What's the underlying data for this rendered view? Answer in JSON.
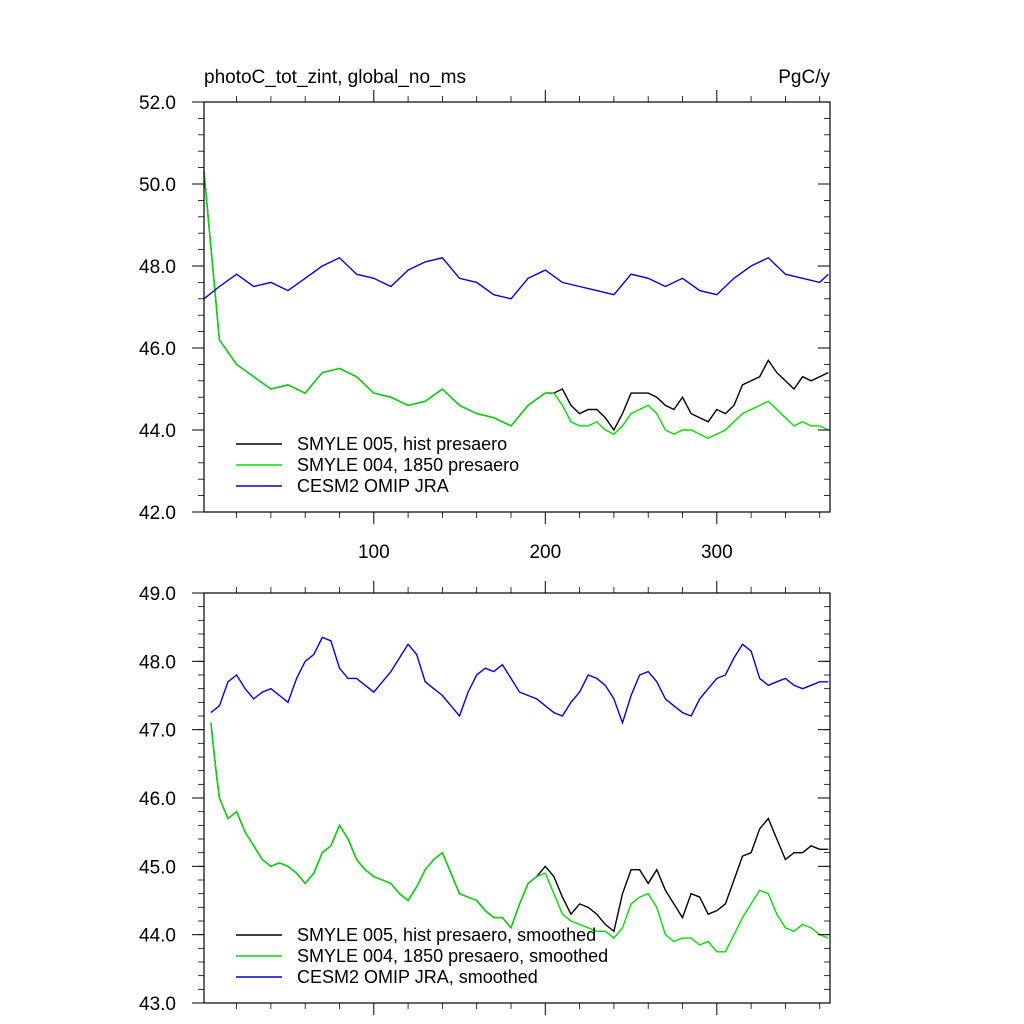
{
  "chart_data": [
    {
      "type": "line",
      "title": "photoC_tot_zint, global_no_ms",
      "units": "PgC/y",
      "xlabel": "",
      "ylabel": "",
      "xlim": [
        1,
        366
      ],
      "ylim": [
        42.0,
        52.0
      ],
      "x_ticks": [
        100,
        200,
        300
      ],
      "y_ticks": [
        "42.0",
        "44.0",
        "46.0",
        "48.0",
        "50.0",
        "52.0"
      ],
      "y_tick_values": [
        42.0,
        44.0,
        46.0,
        48.0,
        50.0,
        52.0
      ],
      "grid": false,
      "legend_position": "bottom-left",
      "series": [
        {
          "name": "SMYLE 005, hist presaero",
          "color": "#000000",
          "x": [
            1,
            10,
            20,
            30,
            40,
            50,
            60,
            70,
            80,
            90,
            100,
            110,
            120,
            130,
            140,
            150,
            160,
            170,
            180,
            190,
            200,
            205,
            210,
            215,
            220,
            225,
            230,
            235,
            240,
            245,
            250,
            255,
            260,
            265,
            270,
            275,
            280,
            285,
            290,
            295,
            300,
            305,
            310,
            315,
            320,
            325,
            330,
            335,
            340,
            345,
            350,
            355,
            360,
            365
          ],
          "y": [
            50.3,
            46.2,
            45.6,
            45.3,
            45.0,
            45.1,
            44.9,
            45.4,
            45.5,
            45.3,
            44.9,
            44.8,
            44.6,
            44.7,
            45.0,
            44.6,
            44.4,
            44.3,
            44.1,
            44.6,
            44.9,
            44.9,
            45.0,
            44.6,
            44.4,
            44.5,
            44.5,
            44.3,
            44.0,
            44.4,
            44.9,
            44.9,
            44.9,
            44.8,
            44.6,
            44.5,
            44.8,
            44.4,
            44.3,
            44.2,
            44.5,
            44.4,
            44.6,
            45.1,
            45.2,
            45.3,
            45.7,
            45.4,
            45.2,
            45.0,
            45.3,
            45.2,
            45.3,
            45.4
          ]
        },
        {
          "name": "SMYLE 004, 1850 presaero",
          "color": "#00dd00",
          "x": [
            1,
            10,
            20,
            30,
            40,
            50,
            60,
            70,
            80,
            90,
            100,
            110,
            120,
            130,
            140,
            150,
            160,
            170,
            180,
            190,
            200,
            205,
            210,
            215,
            220,
            225,
            230,
            235,
            240,
            245,
            250,
            255,
            260,
            265,
            270,
            275,
            280,
            285,
            290,
            295,
            300,
            305,
            310,
            315,
            320,
            325,
            330,
            335,
            340,
            345,
            350,
            355,
            360,
            365
          ],
          "y": [
            50.3,
            46.2,
            45.6,
            45.3,
            45.0,
            45.1,
            44.9,
            45.4,
            45.5,
            45.3,
            44.9,
            44.8,
            44.6,
            44.7,
            45.0,
            44.6,
            44.4,
            44.3,
            44.1,
            44.6,
            44.9,
            44.9,
            44.6,
            44.2,
            44.1,
            44.1,
            44.2,
            44.0,
            43.9,
            44.1,
            44.4,
            44.5,
            44.6,
            44.4,
            44.0,
            43.9,
            44.0,
            44.0,
            43.9,
            43.8,
            43.9,
            44.0,
            44.2,
            44.4,
            44.5,
            44.6,
            44.7,
            44.5,
            44.3,
            44.1,
            44.2,
            44.1,
            44.1,
            44.0
          ]
        },
        {
          "name": "CESM2 OMIP JRA",
          "color": "#0000dd",
          "x": [
            1,
            10,
            20,
            30,
            40,
            50,
            60,
            70,
            80,
            90,
            100,
            110,
            120,
            130,
            140,
            150,
            160,
            170,
            180,
            190,
            200,
            210,
            220,
            230,
            240,
            250,
            260,
            270,
            280,
            290,
            300,
            310,
            320,
            330,
            340,
            350,
            360,
            365
          ],
          "y": [
            47.2,
            47.5,
            47.8,
            47.5,
            47.6,
            47.4,
            47.7,
            48.0,
            48.2,
            47.8,
            47.7,
            47.5,
            47.9,
            48.1,
            48.2,
            47.7,
            47.6,
            47.3,
            47.2,
            47.7,
            47.9,
            47.6,
            47.5,
            47.4,
            47.3,
            47.8,
            47.7,
            47.5,
            47.7,
            47.4,
            47.3,
            47.7,
            48.0,
            48.2,
            47.8,
            47.7,
            47.6,
            47.8
          ]
        }
      ]
    },
    {
      "type": "line",
      "title": "",
      "xlabel": "",
      "ylabel": "",
      "xlim": [
        1,
        366
      ],
      "ylim": [
        43.0,
        49.0
      ],
      "x_ticks": [
        100,
        200,
        300
      ],
      "y_ticks": [
        "43.0",
        "44.0",
        "45.0",
        "46.0",
        "47.0",
        "48.0",
        "49.0"
      ],
      "y_tick_values": [
        43.0,
        44.0,
        45.0,
        46.0,
        47.0,
        48.0,
        49.0
      ],
      "grid": false,
      "legend_position": "bottom-left",
      "series": [
        {
          "name": "SMYLE 005, hist presaero, smoothed",
          "color": "#000000",
          "x": [
            5,
            8,
            10,
            15,
            20,
            25,
            30,
            35,
            40,
            45,
            50,
            55,
            60,
            65,
            70,
            75,
            80,
            85,
            90,
            95,
            100,
            105,
            110,
            115,
            120,
            125,
            130,
            135,
            140,
            145,
            150,
            155,
            160,
            165,
            170,
            175,
            180,
            185,
            190,
            195,
            200,
            205,
            210,
            215,
            220,
            225,
            230,
            235,
            240,
            245,
            250,
            255,
            260,
            265,
            270,
            275,
            280,
            285,
            290,
            295,
            300,
            305,
            310,
            315,
            320,
            325,
            330,
            335,
            340,
            345,
            350,
            355,
            360,
            365
          ],
          "y": [
            47.1,
            46.4,
            46.0,
            45.7,
            45.8,
            45.5,
            45.3,
            45.1,
            45.0,
            45.05,
            45.0,
            44.9,
            44.75,
            44.9,
            45.2,
            45.3,
            45.6,
            45.4,
            45.1,
            44.95,
            44.85,
            44.8,
            44.75,
            44.6,
            44.5,
            44.7,
            44.95,
            45.1,
            45.2,
            44.9,
            44.6,
            44.55,
            44.5,
            44.35,
            44.25,
            44.25,
            44.1,
            44.45,
            44.75,
            44.85,
            45.0,
            44.85,
            44.55,
            44.3,
            44.45,
            44.4,
            44.3,
            44.15,
            44.05,
            44.6,
            44.95,
            44.95,
            44.75,
            44.95,
            44.65,
            44.45,
            44.25,
            44.6,
            44.55,
            44.3,
            44.35,
            44.45,
            44.8,
            45.15,
            45.2,
            45.55,
            45.7,
            45.4,
            45.1,
            45.2,
            45.2,
            45.3,
            45.25,
            45.25
          ]
        },
        {
          "name": "SMYLE 004, 1850 presaero, smoothed",
          "color": "#00dd00",
          "x": [
            5,
            8,
            10,
            15,
            20,
            25,
            30,
            35,
            40,
            45,
            50,
            55,
            60,
            65,
            70,
            75,
            80,
            85,
            90,
            95,
            100,
            105,
            110,
            115,
            120,
            125,
            130,
            135,
            140,
            145,
            150,
            155,
            160,
            165,
            170,
            175,
            180,
            185,
            190,
            195,
            200,
            205,
            210,
            215,
            220,
            225,
            230,
            235,
            240,
            245,
            250,
            255,
            260,
            265,
            270,
            275,
            280,
            285,
            290,
            295,
            300,
            305,
            310,
            315,
            320,
            325,
            330,
            335,
            340,
            345,
            350,
            355,
            360,
            365
          ],
          "y": [
            47.1,
            46.4,
            46.0,
            45.7,
            45.8,
            45.5,
            45.3,
            45.1,
            45.0,
            45.05,
            45.0,
            44.9,
            44.75,
            44.9,
            45.2,
            45.3,
            45.6,
            45.4,
            45.1,
            44.95,
            44.85,
            44.8,
            44.75,
            44.6,
            44.5,
            44.7,
            44.95,
            45.1,
            45.2,
            44.9,
            44.6,
            44.55,
            44.5,
            44.35,
            44.25,
            44.25,
            44.1,
            44.45,
            44.75,
            44.85,
            44.9,
            44.6,
            44.3,
            44.2,
            44.15,
            44.1,
            44.05,
            44.05,
            43.95,
            44.1,
            44.45,
            44.55,
            44.6,
            44.4,
            44.0,
            43.9,
            43.95,
            43.95,
            43.85,
            43.9,
            43.75,
            43.75,
            44.0,
            44.25,
            44.45,
            44.65,
            44.6,
            44.3,
            44.1,
            44.05,
            44.15,
            44.1,
            44.0,
            43.95
          ]
        },
        {
          "name": "CESM2 OMIP JRA, smoothed",
          "color": "#0000dd",
          "x": [
            5,
            10,
            15,
            20,
            25,
            30,
            35,
            40,
            45,
            50,
            55,
            60,
            65,
            70,
            75,
            80,
            85,
            90,
            95,
            100,
            105,
            110,
            115,
            120,
            125,
            130,
            135,
            140,
            145,
            150,
            155,
            160,
            165,
            170,
            175,
            180,
            185,
            190,
            195,
            200,
            205,
            210,
            215,
            220,
            225,
            230,
            235,
            240,
            245,
            250,
            255,
            260,
            265,
            270,
            275,
            280,
            285,
            290,
            295,
            300,
            305,
            310,
            315,
            320,
            325,
            330,
            335,
            340,
            345,
            350,
            355,
            360,
            365
          ],
          "y": [
            47.25,
            47.35,
            47.7,
            47.8,
            47.6,
            47.45,
            47.55,
            47.6,
            47.5,
            47.4,
            47.75,
            48.0,
            48.1,
            48.35,
            48.3,
            47.9,
            47.75,
            47.75,
            47.65,
            47.55,
            47.7,
            47.85,
            48.05,
            48.25,
            48.1,
            47.7,
            47.6,
            47.5,
            47.35,
            47.2,
            47.55,
            47.8,
            47.9,
            47.85,
            47.95,
            47.75,
            47.55,
            47.5,
            47.45,
            47.35,
            47.25,
            47.2,
            47.4,
            47.55,
            47.8,
            47.75,
            47.65,
            47.45,
            47.1,
            47.5,
            47.8,
            47.85,
            47.7,
            47.45,
            47.35,
            47.25,
            47.2,
            47.45,
            47.6,
            47.75,
            47.8,
            48.05,
            48.25,
            48.15,
            47.75,
            47.65,
            47.7,
            47.75,
            47.65,
            47.6,
            47.65,
            47.7,
            47.7
          ]
        }
      ]
    }
  ]
}
